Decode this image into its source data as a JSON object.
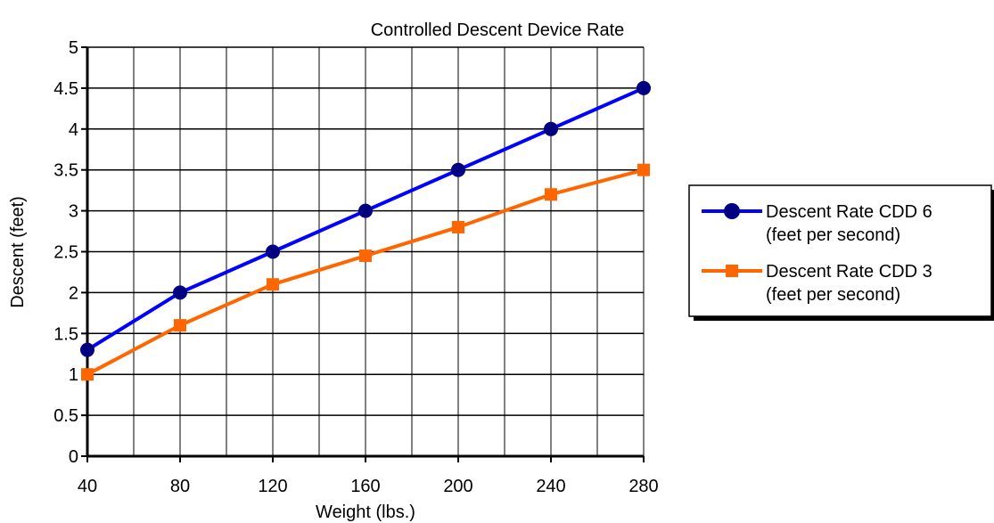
{
  "chart_data": {
    "type": "line",
    "title": "Controlled Descent Device Rate",
    "xlabel": "Weight (lbs.)",
    "ylabel": "Descent (feet)",
    "x": [
      40,
      80,
      120,
      160,
      200,
      240,
      280
    ],
    "xlim": [
      40,
      280
    ],
    "ylim": [
      0,
      5
    ],
    "xticks": [
      "40",
      "80",
      "120",
      "160",
      "200",
      "240",
      "280"
    ],
    "yticks": [
      "0",
      "0.5",
      "1",
      "1.5",
      "2",
      "2.5",
      "3",
      "3.5",
      "4",
      "4.5",
      "5"
    ],
    "grid": true,
    "legend_position": "right",
    "series": [
      {
        "name_lines": [
          "Descent Rate CDD 6",
          "(feet per second)"
        ],
        "color": "#0000ff",
        "marker_color": "#000080",
        "marker": "circle",
        "values": [
          1.3,
          2.0,
          2.5,
          3.0,
          3.5,
          4.0,
          4.5
        ]
      },
      {
        "name_lines": [
          "Descent Rate CDD 3",
          "(feet per second)"
        ],
        "color": "#ff6600",
        "marker_color": "#ff6600",
        "marker": "square",
        "values": [
          1.0,
          1.6,
          2.1,
          2.45,
          2.8,
          3.2,
          3.5
        ]
      }
    ]
  }
}
